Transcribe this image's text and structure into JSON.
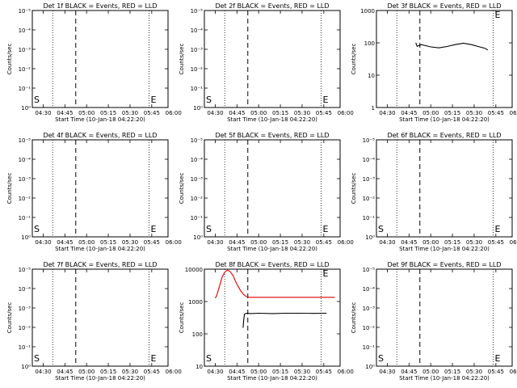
{
  "chart_data": [
    {
      "type": "line",
      "title": "Det 1f BLACK = Events, RED = LLD",
      "xlabel": "Start Time (10-Jan-18 04:22:20)",
      "ylabel": "Counts/sec",
      "yscale": "log",
      "ytick_labels": [
        "10⁰",
        "10⁻¹",
        "10⁻²",
        "10⁻³",
        "10⁻⁴",
        "10⁻⁵"
      ],
      "xtick_labels": [
        "04:30",
        "04:45",
        "05:00",
        "05:15",
        "05:30",
        "05:45",
        "06:00"
      ],
      "series": [],
      "markers": {
        "s": "S",
        "e": "E"
      }
    },
    {
      "type": "line",
      "title": "Det 2f BLACK = Events, RED = LLD",
      "xlabel": "Start Time (10-Jan-18 04:22:20)",
      "ylabel": "Counts/sec",
      "yscale": "log",
      "ytick_labels": [
        "10⁰",
        "10⁻¹",
        "10⁻²",
        "10⁻³",
        "10⁻⁴",
        "10⁻⁵"
      ],
      "xtick_labels": [
        "04:30",
        "04:45",
        "05:00",
        "05:15",
        "05:30",
        "05:45",
        "06:00"
      ],
      "series": [],
      "markers": {
        "s": "S",
        "e": "E"
      }
    },
    {
      "type": "line",
      "title": "Det 3f BLACK = Events, RED = LLD",
      "xlabel": "Start Time (10-Jan-18 04:22:20)",
      "ylabel": "Counts/sec",
      "yscale": "log",
      "ylim": [
        1,
        1000
      ],
      "ytick_labels": [
        "1",
        "10",
        "100",
        "1000"
      ],
      "xtick_labels": [
        "04:30",
        "04:45",
        "05:00",
        "05:15",
        "05:30",
        "05:45",
        "06:00"
      ],
      "series": [
        {
          "color": "#000000",
          "x": [
            29,
            30,
            33,
            36,
            40,
            46,
            52,
            58,
            64,
            70,
            76,
            80,
            82
          ],
          "y": [
            100,
            78,
            88,
            82,
            75,
            70,
            77,
            88,
            98,
            88,
            75,
            68,
            60
          ]
        }
      ],
      "markers": {
        "s": "",
        "e": "E"
      }
    },
    {
      "type": "line",
      "title": "Det 4f BLACK = Events, RED = LLD",
      "xlabel": "Start Time (10-Jan-18 04:22:20)",
      "ylabel": "Counts/sec",
      "yscale": "log",
      "ytick_labels": [
        "10⁰",
        "10⁻¹",
        "10⁻²",
        "10⁻³",
        "10⁻⁴",
        "10⁻⁵"
      ],
      "xtick_labels": [
        "04:30",
        "04:45",
        "05:00",
        "05:15",
        "05:30",
        "05:45",
        "06:00"
      ],
      "series": [],
      "markers": {
        "s": "S",
        "e": "E"
      }
    },
    {
      "type": "line",
      "title": "Det 5f BLACK = Events, RED = LLD",
      "xlabel": "Start Time (10-Jan-18 04:22:20)",
      "ylabel": "Counts/sec",
      "yscale": "log",
      "ytick_labels": [
        "10⁰",
        "10⁻¹",
        "10⁻²",
        "10⁻³",
        "10⁻⁴",
        "10⁻⁵"
      ],
      "xtick_labels": [
        "04:30",
        "04:45",
        "05:00",
        "05:15",
        "05:30",
        "05:45",
        "06:00"
      ],
      "series": [],
      "markers": {
        "s": "S",
        "e": "E"
      }
    },
    {
      "type": "line",
      "title": "Det 6f BLACK = Events, RED = LLD",
      "xlabel": "Start Time (10-Jan-18 04:22:20)",
      "ylabel": "Counts/sec",
      "yscale": "log",
      "ytick_labels": [
        "10⁰",
        "10⁻¹",
        "10⁻²",
        "10⁻³",
        "10⁻⁴",
        "10⁻⁵"
      ],
      "xtick_labels": [
        "04:30",
        "04:45",
        "05:00",
        "05:15",
        "05:30",
        "05:45",
        "06:00"
      ],
      "series": [],
      "markers": {
        "s": "S",
        "e": "E"
      }
    },
    {
      "type": "line",
      "title": "Det 7f BLACK = Events, RED = LLD",
      "xlabel": "Start Time (10-Jan-18 04:22:20)",
      "ylabel": "Counts/sec",
      "yscale": "log",
      "ytick_labels": [
        "10⁰",
        "10⁻¹",
        "10⁻²",
        "10⁻³",
        "10⁻⁴",
        "10⁻⁵"
      ],
      "xtick_labels": [
        "04:30",
        "04:45",
        "05:00",
        "05:15",
        "05:30",
        "05:45",
        "06:00"
      ],
      "series": [],
      "markers": {
        "s": "S",
        "e": "E"
      }
    },
    {
      "type": "line",
      "title": "Det 8f BLACK = Events, RED = LLD",
      "xlabel": "Start Time (10-Jan-18 04:22:20)",
      "ylabel": "Counts/sec",
      "yscale": "log",
      "ylim": [
        10,
        15000
      ],
      "ytick_labels": [
        "10",
        "100",
        "1000",
        "10000"
      ],
      "xtick_labels": [
        "04:30",
        "04:45",
        "05:00",
        "05:15",
        "05:30",
        "05:45",
        "06:00"
      ],
      "series": [
        {
          "color": "#dd0000",
          "x": [
            8,
            9,
            11,
            13,
            15,
            17,
            19,
            21,
            23,
            25,
            27,
            29,
            31,
            33,
            40,
            60,
            80,
            96
          ],
          "y": [
            1700,
            2000,
            4000,
            8000,
            12000,
            14000,
            12500,
            9500,
            6000,
            4000,
            2800,
            2200,
            1900,
            1800,
            1800,
            1800,
            1800,
            1800
          ]
        },
        {
          "color": "#000000",
          "x": [
            28.5,
            29,
            29.5,
            30,
            31,
            34,
            40,
            50,
            60,
            70,
            80,
            90
          ],
          "y": [
            180,
            330,
            500,
            520,
            540,
            530,
            540,
            530,
            540,
            540,
            535,
            540
          ]
        }
      ],
      "markers": {
        "s": "S",
        "e": "E"
      }
    },
    {
      "type": "line",
      "title": "Det 9f BLACK = Events, RED = LLD",
      "xlabel": "Start Time (10-Jan-18 04:22:20)",
      "ylabel": "Counts/sec",
      "yscale": "log",
      "ytick_labels": [
        "10⁰",
        "10⁻¹",
        "10⁻²",
        "10⁻³",
        "10⁻⁴",
        "10⁻⁵"
      ],
      "xtick_labels": [
        "04:30",
        "04:45",
        "05:00",
        "05:15",
        "05:30",
        "05:45",
        "06:00"
      ],
      "series": [],
      "markers": {
        "s": "S",
        "e": "E"
      }
    }
  ]
}
